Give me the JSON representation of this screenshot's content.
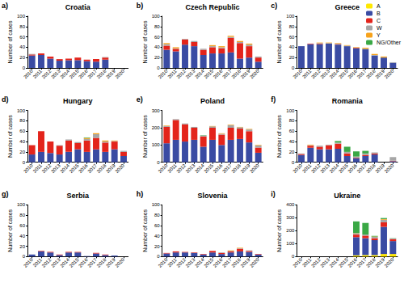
{
  "chart_data": [
    {
      "type": "bar",
      "panel": "a)",
      "title": "Croatia",
      "ylabel": "Number of cases",
      "stacked": true,
      "grid": false,
      "categories": [
        "2010",
        "2011",
        "2012",
        "2013",
        "2014",
        "2015",
        "2016",
        "2017",
        "2018",
        "2019",
        "2020"
      ],
      "ylim": [
        0,
        100
      ],
      "yticks": [
        0,
        20,
        40,
        60,
        80,
        100
      ],
      "series": [
        {
          "name": "A",
          "color": "#ffe800",
          "values": [
            0,
            0,
            0,
            0,
            0,
            0,
            0,
            0,
            0,
            null,
            null
          ]
        },
        {
          "name": "B",
          "color": "#3a4ba3",
          "values": [
            24,
            25,
            18,
            14,
            15,
            15,
            13,
            12,
            16,
            null,
            null
          ]
        },
        {
          "name": "C",
          "color": "#e3241b",
          "values": [
            2,
            3,
            4,
            3,
            3,
            5,
            3,
            5,
            4,
            null,
            null
          ]
        },
        {
          "name": "W",
          "color": "#a6a6a6",
          "values": [
            1,
            0,
            0,
            0,
            0,
            0,
            0,
            0,
            1,
            null,
            null
          ]
        },
        {
          "name": "Y",
          "color": "#f7a21b",
          "values": [
            0,
            0,
            0,
            0,
            0,
            0,
            0,
            0,
            0,
            null,
            null
          ]
        },
        {
          "name": "NG/Other",
          "color": "#3aa845",
          "values": [
            0,
            0,
            0,
            0,
            0,
            0,
            0,
            0,
            0,
            null,
            null
          ]
        }
      ]
    },
    {
      "type": "bar",
      "panel": "b)",
      "title": "Czech Republic",
      "ylabel": "Number of cases",
      "stacked": true,
      "grid": false,
      "categories": [
        "2010",
        "2011",
        "2012",
        "2013",
        "2014",
        "2015",
        "2016",
        "2017",
        "2018",
        "2019",
        "2020"
      ],
      "ylim": [
        0,
        100
      ],
      "yticks": [
        0,
        20,
        40,
        60,
        80,
        100
      ],
      "series": [
        {
          "name": "A",
          "color": "#ffe800",
          "values": [
            0,
            0,
            0,
            0,
            0,
            0,
            0,
            0,
            0,
            0,
            0
          ]
        },
        {
          "name": "B",
          "color": "#3a4ba3",
          "values": [
            35,
            32,
            45,
            42,
            25,
            28,
            28,
            30,
            18,
            20,
            12
          ]
        },
        {
          "name": "C",
          "color": "#e3241b",
          "values": [
            8,
            5,
            10,
            8,
            10,
            12,
            10,
            28,
            30,
            22,
            8
          ]
        },
        {
          "name": "W",
          "color": "#a6a6a6",
          "values": [
            3,
            1,
            1,
            2,
            2,
            2,
            2,
            2,
            2,
            3,
            2
          ]
        },
        {
          "name": "Y",
          "color": "#f7a21b",
          "values": [
            2,
            2,
            0,
            0,
            0,
            2,
            2,
            2,
            2,
            2,
            0
          ]
        },
        {
          "name": "NG/Other",
          "color": "#3aa845",
          "values": [
            0,
            0,
            0,
            0,
            0,
            0,
            0,
            0,
            0,
            0,
            0
          ]
        }
      ]
    },
    {
      "type": "bar",
      "panel": "c)",
      "title": "Greece",
      "ylabel": "Number of cases",
      "stacked": true,
      "grid": false,
      "legend": "upper right",
      "categories": [
        "2010",
        "2011",
        "2012",
        "2013",
        "2014",
        "2015",
        "2016",
        "2017",
        "2018",
        "2019",
        "2020"
      ],
      "ylim": [
        0,
        100
      ],
      "yticks": [
        0,
        20,
        40,
        60,
        80,
        100
      ],
      "series": [
        {
          "name": "A",
          "color": "#ffe800",
          "values": [
            0,
            0,
            0,
            0,
            0,
            0,
            0,
            0,
            0,
            0,
            0
          ]
        },
        {
          "name": "B",
          "color": "#3a4ba3",
          "values": [
            42,
            46,
            46,
            47,
            45,
            42,
            38,
            36,
            24,
            20,
            10
          ]
        },
        {
          "name": "C",
          "color": "#e3241b",
          "values": [
            0,
            1,
            1,
            0,
            1,
            0,
            1,
            0,
            0,
            0,
            0
          ]
        },
        {
          "name": "W",
          "color": "#a6a6a6",
          "values": [
            0,
            0,
            1,
            1,
            1,
            1,
            0,
            1,
            1,
            0,
            1
          ]
        },
        {
          "name": "Y",
          "color": "#f7a21b",
          "values": [
            0,
            0,
            1,
            1,
            1,
            1,
            1,
            2,
            2,
            2,
            0
          ]
        },
        {
          "name": "NG/Other",
          "color": "#3aa845",
          "values": [
            0,
            0,
            0,
            0,
            0,
            0,
            0,
            0,
            0,
            0,
            0
          ]
        }
      ]
    },
    {
      "type": "bar",
      "panel": "d)",
      "title": "Hungary",
      "ylabel": "Number of cases",
      "stacked": true,
      "grid": false,
      "categories": [
        "2010",
        "2011",
        "2012",
        "2013",
        "2014",
        "2015",
        "2016",
        "2017",
        "2018",
        "2019",
        "2020"
      ],
      "ylim": [
        0,
        100
      ],
      "yticks": [
        0,
        20,
        40,
        60,
        80,
        100
      ],
      "series": [
        {
          "name": "A",
          "color": "#ffe800",
          "values": [
            0,
            0,
            0,
            0,
            0,
            0,
            0,
            0,
            0,
            0,
            0
          ]
        },
        {
          "name": "B",
          "color": "#3a4ba3",
          "values": [
            15,
            20,
            18,
            15,
            20,
            25,
            20,
            25,
            20,
            25,
            12
          ]
        },
        {
          "name": "C",
          "color": "#e3241b",
          "values": [
            18,
            40,
            22,
            17,
            22,
            12,
            22,
            22,
            18,
            15,
            8
          ]
        },
        {
          "name": "W",
          "color": "#a6a6a6",
          "values": [
            0,
            0,
            0,
            1,
            2,
            2,
            3,
            7,
            2,
            1,
            2
          ]
        },
        {
          "name": "Y",
          "color": "#f7a21b",
          "values": [
            0,
            0,
            0,
            0,
            0,
            0,
            2,
            2,
            2,
            1,
            0
          ]
        },
        {
          "name": "NG/Other",
          "color": "#3aa845",
          "values": [
            0,
            0,
            0,
            0,
            0,
            0,
            1,
            0,
            0,
            0,
            0
          ]
        }
      ]
    },
    {
      "type": "bar",
      "panel": "e)",
      "title": "Poland",
      "ylabel": "Number of cases",
      "stacked": true,
      "grid": false,
      "categories": [
        "2010",
        "2011",
        "2012",
        "2013",
        "2014",
        "2015",
        "2016",
        "2017",
        "2018",
        "2019",
        "2020"
      ],
      "ylim": [
        0,
        300
      ],
      "yticks": [
        0,
        100,
        200,
        300
      ],
      "series": [
        {
          "name": "A",
          "color": "#ffe800",
          "values": [
            0,
            0,
            0,
            0,
            0,
            0,
            0,
            0,
            0,
            0,
            0
          ]
        },
        {
          "name": "B",
          "color": "#3a4ba3",
          "values": [
            110,
            130,
            120,
            130,
            90,
            130,
            100,
            130,
            135,
            115,
            55
          ]
        },
        {
          "name": "C",
          "color": "#e3241b",
          "values": [
            95,
            115,
            100,
            70,
            60,
            70,
            60,
            70,
            60,
            65,
            30
          ]
        },
        {
          "name": "W",
          "color": "#a6a6a6",
          "values": [
            5,
            5,
            5,
            5,
            5,
            8,
            5,
            15,
            8,
            10,
            12
          ]
        },
        {
          "name": "Y",
          "color": "#f7a21b",
          "values": [
            3,
            0,
            0,
            0,
            0,
            2,
            3,
            3,
            2,
            3,
            3
          ]
        },
        {
          "name": "NG/Other",
          "color": "#3aa845",
          "values": [
            0,
            0,
            0,
            0,
            2,
            0,
            0,
            0,
            0,
            0,
            0
          ]
        }
      ]
    },
    {
      "type": "bar",
      "panel": "f)",
      "title": "Romania",
      "ylabel": "Number of cases",
      "stacked": true,
      "grid": false,
      "categories": [
        "2010",
        "2011",
        "2012",
        "2013",
        "2014",
        "2015",
        "2016",
        "2017",
        "2018",
        "2019",
        "2020"
      ],
      "ylim": [
        0,
        100
      ],
      "yticks": [
        0,
        20,
        40,
        60,
        80,
        100
      ],
      "series": [
        {
          "name": "A",
          "color": "#ffe800",
          "values": [
            0,
            0,
            0,
            0,
            0,
            0,
            0,
            0,
            0,
            null,
            0
          ]
        },
        {
          "name": "B",
          "color": "#3a4ba3",
          "values": [
            14,
            28,
            25,
            25,
            26,
            12,
            8,
            12,
            15,
            null,
            2
          ]
        },
        {
          "name": "C",
          "color": "#e3241b",
          "values": [
            2,
            4,
            5,
            8,
            10,
            5,
            1,
            2,
            2,
            null,
            1
          ]
        },
        {
          "name": "W",
          "color": "#a6a6a6",
          "values": [
            1,
            1,
            2,
            1,
            2,
            3,
            2,
            3,
            2,
            null,
            7
          ]
        },
        {
          "name": "Y",
          "color": "#f7a21b",
          "values": [
            0,
            1,
            0,
            0,
            0,
            0,
            0,
            0,
            0,
            null,
            0
          ]
        },
        {
          "name": "NG/Other",
          "color": "#3aa845",
          "values": [
            0,
            0,
            0,
            0,
            3,
            10,
            10,
            5,
            0,
            null,
            0
          ]
        }
      ]
    },
    {
      "type": "bar",
      "panel": "g)",
      "title": "Serbia",
      "ylabel": "Number of cases",
      "stacked": true,
      "grid": false,
      "categories": [
        "2010",
        "2011",
        "2012",
        "2013",
        "2014",
        "2015",
        "2016",
        "2017",
        "2018",
        "2019",
        "2020"
      ],
      "ylim": [
        0,
        100
      ],
      "yticks": [
        0,
        20,
        40,
        60,
        80,
        100
      ],
      "series": [
        {
          "name": "A",
          "color": "#ffe800",
          "values": [
            0,
            0,
            0,
            0,
            0,
            0,
            0,
            0,
            0,
            0,
            null
          ]
        },
        {
          "name": "B",
          "color": "#3a4ba3",
          "values": [
            4,
            10,
            8,
            3,
            8,
            8,
            1,
            6,
            3,
            2,
            null
          ]
        },
        {
          "name": "C",
          "color": "#e3241b",
          "values": [
            0,
            1,
            1,
            1,
            1,
            1,
            0,
            1,
            1,
            0,
            null
          ]
        },
        {
          "name": "W",
          "color": "#a6a6a6",
          "values": [
            0,
            0,
            0,
            0,
            0,
            0,
            0,
            0,
            0,
            0,
            null
          ]
        },
        {
          "name": "Y",
          "color": "#f7a21b",
          "values": [
            0,
            0,
            0,
            0,
            0,
            0,
            0,
            0,
            0,
            0,
            null
          ]
        },
        {
          "name": "NG/Other",
          "color": "#3aa845",
          "values": [
            0,
            0,
            0,
            0,
            0,
            0,
            0,
            0,
            0,
            0,
            null
          ]
        }
      ]
    },
    {
      "type": "bar",
      "panel": "h)",
      "title": "Slovenia",
      "ylabel": "Number of cases",
      "stacked": true,
      "grid": false,
      "categories": [
        "2010",
        "2011",
        "2012",
        "2013",
        "2014",
        "2015",
        "2016",
        "2017",
        "2018",
        "2019",
        "2020"
      ],
      "ylim": [
        0,
        100
      ],
      "yticks": [
        0,
        20,
        40,
        60,
        80,
        100
      ],
      "series": [
        {
          "name": "A",
          "color": "#ffe800",
          "values": [
            0,
            0,
            0,
            0,
            0,
            0,
            0,
            0,
            0,
            0,
            0
          ]
        },
        {
          "name": "B",
          "color": "#3a4ba3",
          "values": [
            6,
            8,
            8,
            7,
            4,
            8,
            5,
            8,
            10,
            9,
            4
          ]
        },
        {
          "name": "C",
          "color": "#e3241b",
          "values": [
            1,
            2,
            1,
            1,
            1,
            3,
            2,
            2,
            5,
            2,
            1
          ]
        },
        {
          "name": "W",
          "color": "#a6a6a6",
          "values": [
            0,
            0,
            0,
            0,
            0,
            0,
            1,
            1,
            1,
            1,
            0
          ]
        },
        {
          "name": "Y",
          "color": "#f7a21b",
          "values": [
            0,
            0,
            0,
            0,
            0,
            0,
            0,
            1,
            1,
            0,
            0
          ]
        },
        {
          "name": "NG/Other",
          "color": "#3aa845",
          "values": [
            0,
            0,
            0,
            0,
            0,
            0,
            0,
            0,
            0,
            0,
            0
          ]
        }
      ]
    },
    {
      "type": "bar",
      "panel": "i)",
      "title": "Ukraine",
      "ylabel": "Number of cases",
      "stacked": true,
      "grid": false,
      "categories": [
        "2010",
        "2011",
        "2012",
        "2013",
        "2014",
        "2015",
        "2016",
        "2017",
        "2018",
        "2019",
        "2020"
      ],
      "ylim": [
        0,
        400
      ],
      "yticks": [
        0,
        100,
        200,
        300,
        400
      ],
      "series": [
        {
          "name": "A",
          "color": "#ffe800",
          "values": [
            null,
            null,
            null,
            null,
            null,
            null,
            10,
            12,
            12,
            20,
            20
          ]
        },
        {
          "name": "B",
          "color": "#3a4ba3",
          "values": [
            null,
            null,
            null,
            null,
            null,
            null,
            140,
            130,
            115,
            210,
            100
          ]
        },
        {
          "name": "C",
          "color": "#e3241b",
          "values": [
            null,
            null,
            null,
            null,
            null,
            null,
            20,
            20,
            15,
            35,
            15
          ]
        },
        {
          "name": "W",
          "color": "#a6a6a6",
          "values": [
            null,
            null,
            null,
            null,
            null,
            null,
            10,
            8,
            10,
            20,
            5
          ]
        },
        {
          "name": "Y",
          "color": "#f7a21b",
          "values": [
            null,
            null,
            null,
            null,
            null,
            null,
            2,
            0,
            3,
            5,
            0
          ]
        },
        {
          "name": "NG/Other",
          "color": "#3aa845",
          "values": [
            null,
            null,
            null,
            null,
            null,
            null,
            90,
            90,
            5,
            8,
            2
          ]
        }
      ]
    }
  ]
}
